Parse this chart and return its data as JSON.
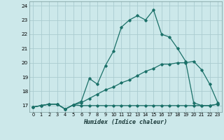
{
  "xlabel": "Humidex (Indice chaleur)",
  "bg_color": "#cce8ea",
  "grid_color": "#aaccd0",
  "line_color": "#1a7068",
  "xlim": [
    -0.5,
    23.5
  ],
  "ylim": [
    16.55,
    24.3
  ],
  "yticks": [
    17,
    18,
    19,
    20,
    21,
    22,
    23,
    24
  ],
  "xticks": [
    0,
    1,
    2,
    3,
    4,
    5,
    6,
    7,
    8,
    9,
    10,
    11,
    12,
    13,
    14,
    15,
    16,
    17,
    18,
    19,
    20,
    21,
    22,
    23
  ],
  "line_flat_x": [
    0,
    1,
    2,
    3,
    4,
    5,
    6,
    7,
    8,
    9,
    10,
    11,
    12,
    13,
    14,
    15,
    16,
    17,
    18,
    19,
    20,
    21,
    22,
    23
  ],
  "line_flat_y": [
    16.9,
    17.0,
    17.1,
    17.1,
    16.75,
    17.05,
    17.0,
    17.0,
    17.0,
    17.0,
    17.0,
    17.0,
    17.0,
    17.0,
    17.0,
    17.0,
    17.0,
    17.0,
    17.0,
    17.0,
    17.0,
    17.0,
    17.0,
    17.1
  ],
  "line_slow_x": [
    0,
    1,
    2,
    3,
    4,
    5,
    6,
    7,
    8,
    9,
    10,
    11,
    12,
    13,
    14,
    15,
    16,
    17,
    18,
    19,
    20,
    21,
    22,
    23
  ],
  "line_slow_y": [
    16.9,
    17.0,
    17.1,
    17.1,
    16.75,
    17.05,
    17.2,
    17.5,
    17.8,
    18.1,
    18.3,
    18.6,
    18.8,
    19.1,
    19.4,
    19.6,
    19.9,
    19.9,
    20.0,
    20.0,
    20.1,
    19.5,
    18.5,
    17.2
  ],
  "line_main_x": [
    0,
    1,
    2,
    3,
    4,
    5,
    6,
    7,
    8,
    9,
    10,
    11,
    12,
    13,
    14,
    15,
    16,
    17,
    18,
    19,
    20,
    21,
    22,
    23
  ],
  "line_main_y": [
    16.9,
    17.0,
    17.1,
    17.1,
    16.75,
    17.05,
    17.3,
    18.9,
    18.5,
    19.8,
    20.8,
    22.5,
    23.0,
    23.3,
    23.0,
    23.7,
    22.0,
    21.8,
    21.0,
    20.1,
    17.2,
    17.0,
    17.0,
    17.1
  ]
}
